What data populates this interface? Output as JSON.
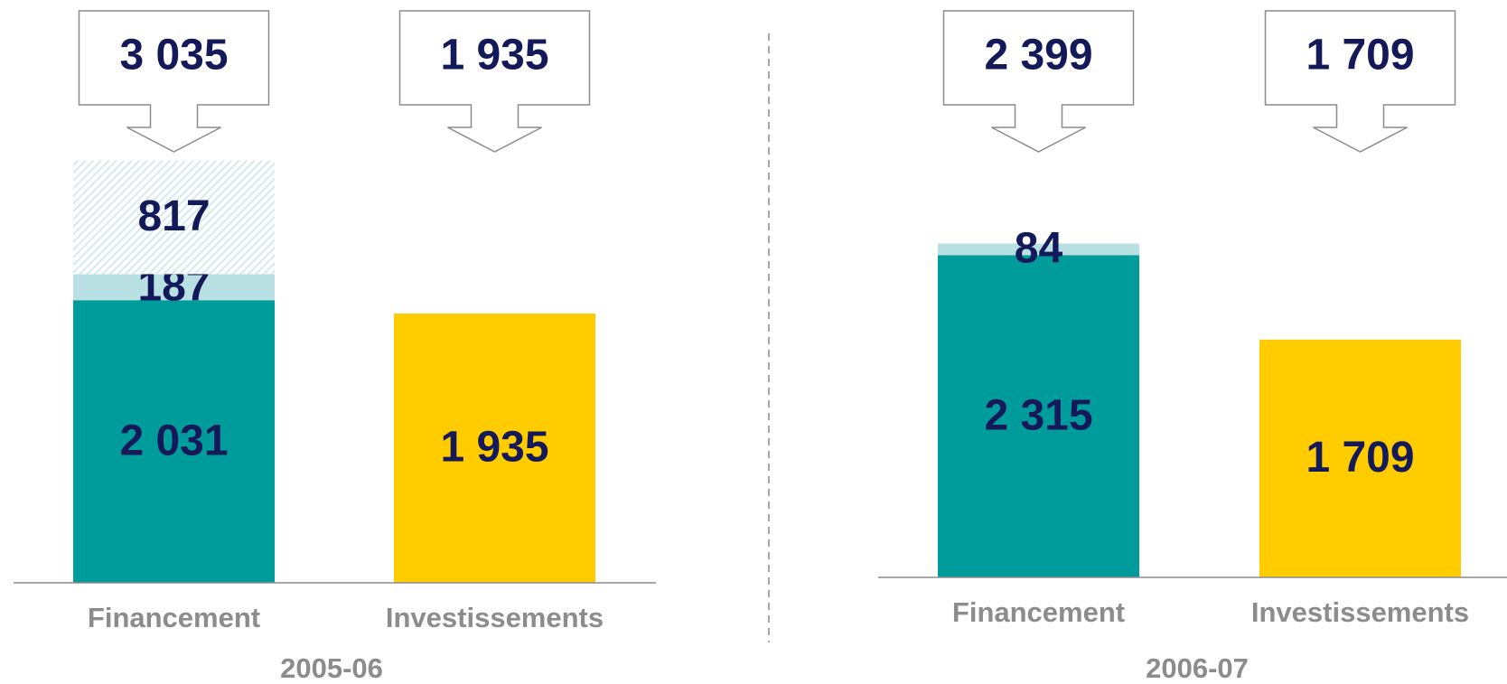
{
  "chart_data": [
    {
      "type": "bar",
      "stacked": true,
      "xlabel": "2005-06",
      "categories": [
        "Financement",
        "Investissements"
      ],
      "ylim": [
        0,
        4000
      ],
      "series": [
        {
          "color": "#009b9b",
          "values": [
            2031,
            null
          ],
          "value_labels": [
            "2 031",
            null
          ]
        },
        {
          "color": "#b9e0e3",
          "values": [
            187,
            null
          ],
          "value_labels": [
            "187",
            null
          ]
        },
        {
          "color": "#e3f2f4",
          "pattern": "hatch",
          "values": [
            817,
            null
          ],
          "value_labels": [
            "817",
            null
          ]
        },
        {
          "color": "#ffcc00",
          "values": [
            null,
            1935
          ],
          "value_labels": [
            null,
            "1 935"
          ]
        }
      ],
      "totals": [
        3035,
        1935
      ],
      "total_labels": [
        "3 035",
        "1 935"
      ]
    },
    {
      "type": "bar",
      "stacked": true,
      "xlabel": "2006-07",
      "categories": [
        "Financement",
        "Investissements"
      ],
      "ylim": [
        0,
        4000
      ],
      "series": [
        {
          "color": "#009b9b",
          "values": [
            2315,
            null
          ],
          "value_labels": [
            "2 315",
            null
          ]
        },
        {
          "color": "#b9e0e3",
          "values": [
            84,
            null
          ],
          "value_labels": [
            "84",
            null
          ]
        },
        {
          "color": "#ffcc00",
          "values": [
            null,
            1709
          ],
          "value_labels": [
            null,
            "1 709"
          ]
        }
      ],
      "totals": [
        2399,
        1709
      ],
      "total_labels": [
        "2 399",
        "1 709"
      ]
    }
  ]
}
